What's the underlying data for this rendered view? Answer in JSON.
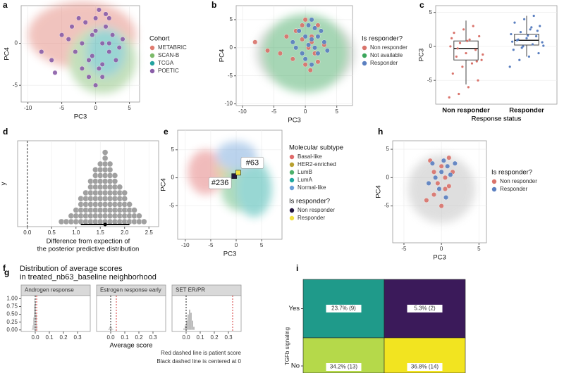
{
  "panel_g": "g",
  "chart_data": [
    {
      "panel": "a",
      "type": "scatter",
      "xlabel": "PC3",
      "ylabel": "PC4",
      "xlim": [
        -11,
        6.5
      ],
      "ylim": [
        -7,
        4.5
      ],
      "xticks": [
        -10,
        -5,
        0,
        5
      ],
      "yticks": [
        0,
        -5
      ],
      "grid": true,
      "legend_title": "Cohort",
      "series": [
        {
          "name": "METABRIC",
          "color": "#e07b6f"
        },
        {
          "name": "SCAN-B",
          "color": "#7cba6a"
        },
        {
          "name": "TCGA",
          "color": "#22a3a0"
        },
        {
          "name": "POETIC",
          "color": "#8a5ea8",
          "x": [
            -8,
            -6.5,
            -5,
            -4,
            -3.5,
            -3,
            -2.5,
            -2,
            -1.5,
            -1,
            -0.5,
            0,
            0.5,
            1,
            1.5,
            2,
            2.5,
            3,
            -1,
            0,
            1,
            2,
            -2,
            0.5,
            1.5,
            -0.5,
            3.5,
            4,
            -6,
            0,
            1,
            2
          ],
          "values": [
            -1,
            -2,
            1,
            0.5,
            2,
            -1,
            3,
            0,
            2.5,
            -2,
            1,
            3,
            -3,
            0,
            2,
            -1,
            1,
            -2,
            -4,
            -5,
            -4,
            3,
            -3,
            4,
            3.5,
            -1.5,
            -0.5,
            0.5,
            -3.5,
            1.5,
            -2.5,
            0
          ]
        }
      ]
    },
    {
      "panel": "b",
      "type": "scatter",
      "xlabel": "PC3",
      "ylabel": "PC4",
      "xlim": [
        -11,
        7.5
      ],
      "ylim": [
        -10.3,
        7.5
      ],
      "xticks": [
        -10,
        -5,
        0,
        5
      ],
      "yticks": [
        5,
        0,
        -5,
        -10
      ],
      "grid": true,
      "legend_title": "Is responder?",
      "series": [
        {
          "name": "Non responder",
          "color": "#d9736b",
          "x": [
            -8,
            -6,
            -3,
            -1.5,
            -0.5,
            0,
            0.5,
            1,
            1.5,
            2,
            -2,
            0,
            1,
            3,
            -4,
            -0.5,
            2,
            0.8
          ],
          "values": [
            1,
            -0.5,
            2,
            3,
            4,
            5,
            0,
            2,
            -1,
            4,
            -2,
            -3,
            1,
            0.5,
            -1,
            1.5,
            -2.5,
            -4
          ]
        },
        {
          "name": "Not available",
          "color": "#3aa55b"
        },
        {
          "name": "Responder",
          "color": "#5a7fc0",
          "x": [
            -2,
            -1,
            0,
            0.5,
            1,
            1.5,
            2,
            2.5,
            3,
            -0.5,
            0,
            1,
            2,
            1,
            -1.5,
            0.5,
            1.5,
            3.5
          ],
          "values": [
            1,
            3,
            2,
            4,
            5,
            0,
            2,
            3,
            1,
            -1,
            -2,
            -3,
            -1,
            1.5,
            0,
            0.5,
            3.5,
            -0.5
          ]
        }
      ]
    },
    {
      "panel": "c",
      "type": "box",
      "xlabel": "Response status",
      "ylabel": "PC3",
      "ylim": [
        -8.5,
        6
      ],
      "yticks": [
        5,
        0,
        -5
      ],
      "grid": true,
      "categories": [
        "Non responder",
        "Responder"
      ],
      "series": [
        {
          "name": "Non responder",
          "color": "#d9736b",
          "q1": -2,
          "median": -0.3,
          "q3": 0.8,
          "whisker_low": -5.6,
          "whisker_high": 3.8,
          "values": [
            -7.5,
            -7,
            -6,
            -5,
            -4,
            -3,
            -2.5,
            -2,
            -1.5,
            -1,
            -0.5,
            0,
            0.5,
            1,
            1.5,
            2,
            2.5,
            3,
            -1.2,
            -0.3,
            0.8,
            -2.2,
            1.2
          ]
        },
        {
          "name": "Responder",
          "color": "#5a7fc0",
          "q1": 0.2,
          "median": 0.9,
          "q3": 1.8,
          "whisker_low": -1.5,
          "whisker_high": 4.5,
          "values": [
            -3,
            -2,
            -1.5,
            -1,
            -0.5,
            0,
            0.3,
            0.6,
            0.9,
            1.2,
            1.5,
            1.8,
            2.1,
            2.5,
            3,
            3.5,
            4,
            4.5,
            0.1,
            1,
            1.6,
            2.3,
            0.7,
            -0.2,
            2.8
          ]
        }
      ]
    },
    {
      "panel": "d",
      "type": "dotplot",
      "ylabel": "y",
      "xlabel": [
        "Difference from expection of",
        "the posterior predictive distribution"
      ],
      "xlim": [
        -0.2,
        2.7
      ],
      "xticks": [
        {
          "value": 0,
          "label": "0.0"
        },
        {
          "value": 0.5,
          "label": "0.5"
        },
        {
          "value": 1,
          "label": "1.0"
        },
        {
          "value": 1.5,
          "label": "1.5"
        },
        {
          "value": 2,
          "label": "2.0"
        },
        {
          "value": 2.5,
          "label": "2.5"
        }
      ],
      "grid": true,
      "color": "#a0a0a0",
      "reference": 0,
      "x": [
        0.7,
        0.8,
        0.9,
        1.0,
        1.1,
        1.2,
        1.3,
        1.4,
        1.5,
        1.6,
        1.7,
        1.8,
        1.9,
        2.0,
        2.1,
        2.2,
        2.3,
        2.4
      ],
      "counts": [
        1,
        1,
        2,
        3,
        5,
        6,
        8,
        10,
        11,
        13,
        11,
        9,
        7,
        6,
        4,
        3,
        2,
        1
      ],
      "interval": [
        1.1,
        2.1
      ],
      "point": 1.6
    },
    {
      "panel": "e",
      "type": "scatter",
      "xlabel": "PC3",
      "ylabel": "PC4",
      "xlim": [
        -11.5,
        9
      ],
      "ylim": [
        -11,
        8.5
      ],
      "xticks": [
        -10,
        -5,
        0,
        5
      ],
      "yticks": [
        5,
        0,
        -5
      ],
      "grid": true,
      "legend_title": "Molecular subtype",
      "series": [
        {
          "name": "Basal-like",
          "color": "#e06b6b"
        },
        {
          "name": "HER2-enriched",
          "color": "#b8a030"
        },
        {
          "name": "LumB",
          "color": "#4db06a"
        },
        {
          "name": "LumA",
          "color": "#1fa8a0"
        },
        {
          "name": "Normal-like",
          "color": "#6a9fd8"
        }
      ],
      "legend2_title": "Is responder?",
      "series2": [
        {
          "name": "Non responder",
          "color": "#23163f",
          "x": [
            -0.4
          ],
          "values": [
            0.3
          ],
          "point_labels": [
            "#236"
          ]
        },
        {
          "name": "Responder",
          "color": "#f0e040",
          "x": [
            0.4
          ],
          "values": [
            0.9
          ],
          "point_labels": [
            "#63"
          ]
        }
      ]
    },
    {
      "panel": "h",
      "type": "scatter",
      "xlabel": "PC3",
      "ylabel": "PC4",
      "xlim": [
        -6.5,
        6
      ],
      "ylim": [
        -11.5,
        6.5
      ],
      "xticks": [
        -5,
        0,
        5
      ],
      "yticks": [
        5,
        0,
        -5
      ],
      "grid": true,
      "legend_title": "Is responder?",
      "series": [
        {
          "name": "Non responder",
          "color": "#d9736b",
          "x": [
            -1.5,
            -1,
            -0.5,
            0,
            0.5,
            1,
            1.5,
            -1,
            0.5,
            1,
            -2,
            0
          ],
          "values": [
            3,
            1,
            -1,
            2,
            0,
            3.5,
            1,
            -3,
            -2,
            -1.5,
            -4,
            -5
          ]
        },
        {
          "name": "Responder",
          "color": "#5a7fc0",
          "x": [
            -1.2,
            -0.8,
            0,
            0.3,
            0.8,
            1.2,
            -0.3,
            0.6,
            1.8,
            -1.7
          ],
          "values": [
            2.5,
            0,
            1,
            3,
            2,
            0.5,
            -2,
            -3.5,
            2.5,
            -1
          ]
        }
      ]
    },
    {
      "panel": "f",
      "type": "facets",
      "title": [
        "Distribution of average scores",
        "in treated_nb63_baseline neighborhood"
      ],
      "xlabel": "Average score",
      "notes": [
        "Red dashed line is patient score",
        "Black dashed line is centered at 0"
      ],
      "xlim": [
        -0.1,
        0.39
      ],
      "ylim": [
        -0.05,
        1.1
      ],
      "xticks": [
        {
          "value": 0,
          "label": "0.0"
        },
        {
          "value": 0.1,
          "label": "0.1"
        },
        {
          "value": 0.2,
          "label": "0.2"
        },
        {
          "value": 0.3,
          "label": "0.3"
        }
      ],
      "yticks": [
        {
          "value": 0,
          "label": "0.00"
        },
        {
          "value": 0.25,
          "label": "0.25"
        },
        {
          "value": 0.5,
          "label": "0.50"
        },
        {
          "value": 0.75,
          "label": "0.75"
        },
        {
          "value": 1,
          "label": "1.00"
        }
      ],
      "reference": 0,
      "color": "#b0b0b0",
      "facets": [
        {
          "name": "Androgen response",
          "patient_score": 0.01,
          "bins": [
            -0.025,
            -0.02,
            -0.015,
            -0.01,
            -0.005,
            0,
            0.005,
            0.01,
            0.015
          ],
          "counts": [
            0.05,
            0.15,
            0.4,
            0.8,
            1,
            0.9,
            0.5,
            0.15
          ]
        },
        {
          "name": "Estrogen response early",
          "patient_score": 0.04,
          "bins": [
            -0.02,
            -0.015,
            -0.01,
            -0.005,
            0,
            0.005,
            0.01,
            0.015,
            0.02
          ],
          "counts": [
            0.02,
            0.05,
            0.1,
            0.15,
            0.12,
            0.08,
            0.04,
            0.02
          ]
        },
        {
          "name": "SET ER/PR",
          "patient_score": 0.33,
          "bins": [
            -0.02,
            -0.01,
            0,
            0.01,
            0.02,
            0.03,
            0.04,
            0.05,
            0.06
          ],
          "counts": [
            0.05,
            0.15,
            0.3,
            0.5,
            0.65,
            0.55,
            0.3,
            0.1
          ]
        }
      ]
    },
    {
      "panel": "i",
      "type": "heatmap",
      "ylabel": "TGFb signaling",
      "rows": [
        "Yes",
        "No"
      ],
      "values": [
        [
          23.7,
          5.3
        ],
        [
          34.2,
          36.8
        ]
      ],
      "value_labels": [
        [
          "23.7% (9)",
          "5.3% (2)"
        ],
        [
          "34.2% (13)",
          "36.8% (14)"
        ]
      ],
      "colors": [
        [
          "#1f9a8a",
          "#3b1a5a"
        ],
        [
          "#b5d94a",
          "#f2e420"
        ]
      ]
    }
  ]
}
